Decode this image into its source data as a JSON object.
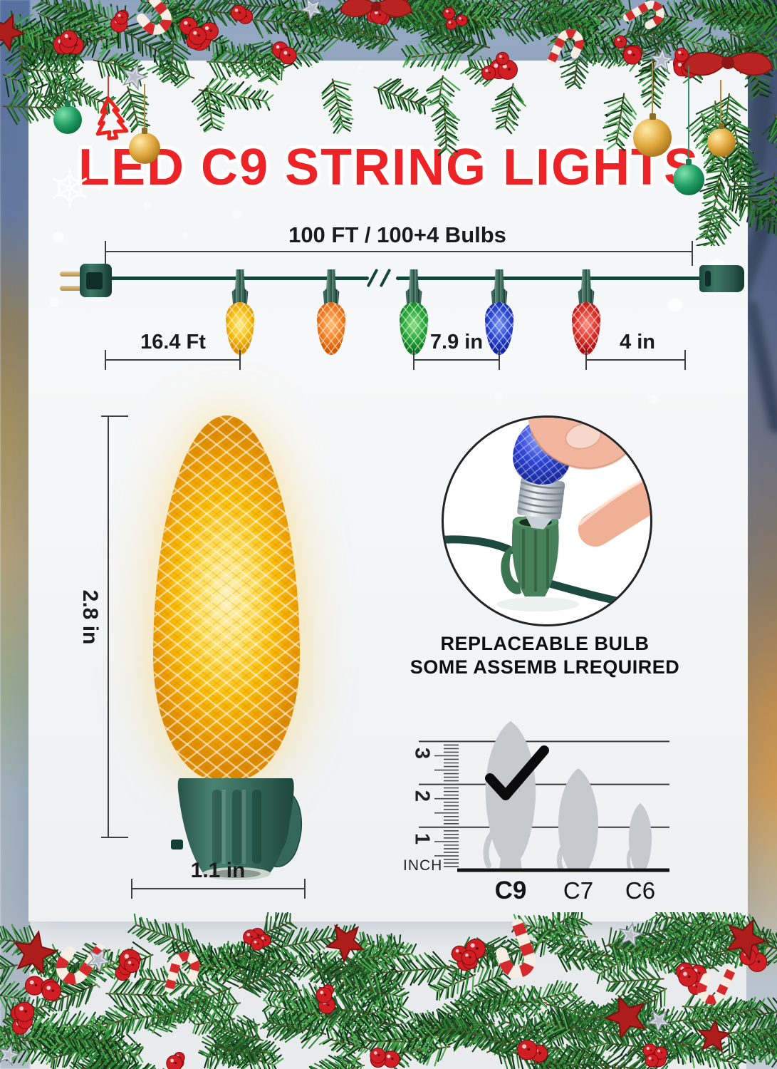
{
  "page": {
    "title": "LED C9 STRING LIGHTS"
  },
  "colors": {
    "title_red": "#ec2427",
    "wire_green": "#16453a",
    "socket_green": "#3e7463",
    "measure_line": "#3f3f3f",
    "silhouette_gray": "#c6c9ce"
  },
  "string_diagram": {
    "total_label": "100 FT / 100+4 Bulbs",
    "lead_label": "16.4 Ft",
    "spacing_label": "7.9 in",
    "end_label": "4 in",
    "bulbs": [
      {
        "name": "yellow",
        "hex": "#f7c213",
        "light": "#ffeb8e",
        "dark": "#dd8f00"
      },
      {
        "name": "orange",
        "hex": "#f8862a",
        "light": "#ffc07a",
        "dark": "#d45c00"
      },
      {
        "name": "green",
        "hex": "#2fae3f",
        "light": "#90e07f",
        "dark": "#0c7a20"
      },
      {
        "name": "blue",
        "hex": "#2f4fd8",
        "light": "#8098f2",
        "dark": "#1224a4"
      },
      {
        "name": "red",
        "hex": "#e23a31",
        "light": "#ff9184",
        "dark": "#ab0f0e"
      }
    ]
  },
  "bulb_detail": {
    "height_label": "2.8 in",
    "width_label": "1.1 in"
  },
  "inset": {
    "caption_line1": "REPLACEABLE BULB",
    "caption_line2": "SOME ASSEMB LREQUIRED"
  },
  "size_chart": {
    "unit_label": "INCH",
    "ruler_numbers": [
      "3",
      "2",
      "1"
    ],
    "bulb_types": [
      {
        "label": "C9",
        "height_inches": 3.0,
        "selected": true
      },
      {
        "label": "C7",
        "height_inches": 2.3,
        "selected": false
      },
      {
        "label": "C6",
        "height_inches": 1.55,
        "selected": false
      }
    ]
  },
  "chart_data": {
    "type": "bar",
    "title": "Bulb size comparison",
    "categories": [
      "C9",
      "C7",
      "C6"
    ],
    "values": [
      3.0,
      2.3,
      1.55
    ],
    "ylabel": "INCH",
    "ylim": [
      0,
      3.5
    ],
    "selected_category": "C9"
  },
  "icons": [
    "check-icon",
    "snowflake-icon",
    "silver-star-icon",
    "red-star-icon",
    "christmas-tree-icon",
    "ornament-ball-icon",
    "candy-cane-icon",
    "ribbon-bow-icon",
    "plug-icon",
    "berry-icon"
  ]
}
